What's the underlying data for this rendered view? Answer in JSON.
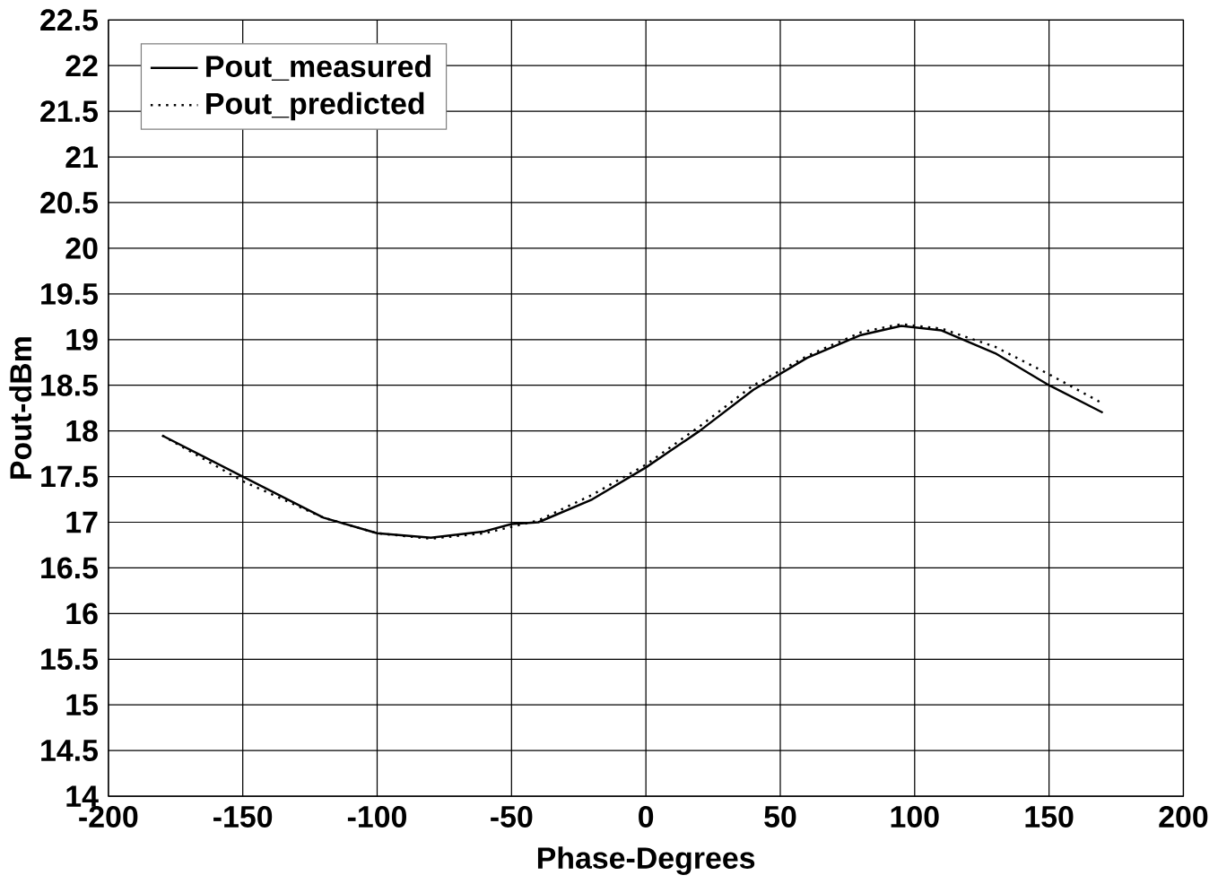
{
  "chart_data": {
    "type": "line",
    "xlabel": "Phase-Degrees",
    "ylabel": "Pout-dBm",
    "xlim": [
      -200,
      200
    ],
    "xticks": [
      -200,
      -150,
      -100,
      -50,
      0,
      50,
      100,
      150,
      200
    ],
    "ylim": [
      14,
      22.5
    ],
    "yticks": [
      14,
      14.5,
      15,
      15.5,
      16,
      16.5,
      17,
      17.5,
      18,
      18.5,
      19,
      19.5,
      20,
      20.5,
      21,
      21.5,
      22,
      22.5
    ],
    "grid": true,
    "legend": "top left",
    "marker": "none",
    "series": [
      {
        "name": "Pout_measured",
        "color": "#000000",
        "line_style": "solid",
        "x": [
          -180,
          -150,
          -120,
          -100,
          -80,
          -60,
          -50,
          -40,
          -20,
          0,
          20,
          40,
          60,
          80,
          95,
          110,
          130,
          150,
          170
        ],
        "values": [
          17.95,
          17.5,
          17.05,
          16.88,
          16.83,
          16.9,
          16.98,
          17.0,
          17.25,
          17.6,
          18.0,
          18.45,
          18.8,
          19.05,
          19.15,
          19.1,
          18.85,
          18.5,
          18.2
        ]
      },
      {
        "name": "Pout_predicted",
        "color": "#000000",
        "line_style": "dotted",
        "x": [
          -180,
          -150,
          -120,
          -100,
          -80,
          -60,
          -50,
          -40,
          -20,
          0,
          20,
          40,
          60,
          80,
          95,
          110,
          130,
          150,
          170
        ],
        "values": [
          17.95,
          17.45,
          17.05,
          16.88,
          16.82,
          16.88,
          16.95,
          17.02,
          17.3,
          17.63,
          18.05,
          18.5,
          18.82,
          19.08,
          19.17,
          19.12,
          18.92,
          18.62,
          18.3
        ]
      }
    ]
  }
}
